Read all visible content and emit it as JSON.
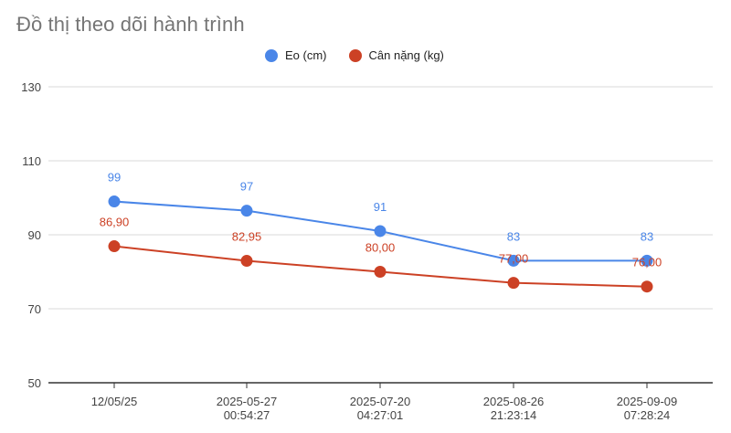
{
  "title": "Đồ thị theo dõi hành trình",
  "colors": {
    "eo": "#4a86e8",
    "can_nang": "#cc4125",
    "grid": "#d9d9d9",
    "axis": "#333333"
  },
  "chart_data": {
    "type": "line",
    "title": "Đồ thị theo dõi hành trình",
    "xlabel": "",
    "ylabel": "",
    "ylim": [
      50,
      130
    ],
    "yticks": [
      50,
      70,
      90,
      110,
      130
    ],
    "grid": true,
    "legend_position": "top",
    "categories": [
      [
        "12/05/25"
      ],
      [
        "2025-05-27",
        "00:54:27"
      ],
      [
        "2025-07-20",
        "04:27:01"
      ],
      [
        "2025-08-26",
        "21:23:14"
      ],
      [
        "2025-09-09",
        "07:28:24"
      ]
    ],
    "series": [
      {
        "name": "Eo (cm)",
        "color": "#4a86e8",
        "values": [
          99,
          96.5,
          91,
          83,
          83
        ],
        "labels": [
          "99",
          "97",
          "91",
          "83",
          "83"
        ]
      },
      {
        "name": "Cân nặng (kg)",
        "color": "#cc4125",
        "values": [
          86.9,
          82.95,
          80,
          77,
          76
        ],
        "labels": [
          "86,90",
          "82,95",
          "80,00",
          "77,00",
          "76,00"
        ]
      }
    ]
  }
}
